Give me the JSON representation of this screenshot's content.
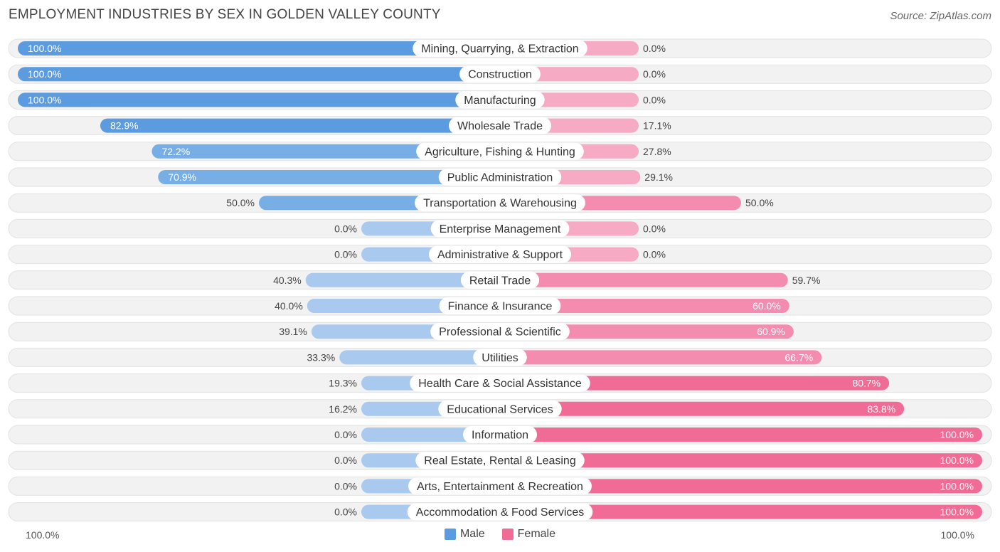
{
  "chart_data": {
    "type": "bar",
    "orientation": "horizontal-diverging",
    "title": "EMPLOYMENT INDUSTRIES BY SEX IN GOLDEN VALLEY COUNTY",
    "source": "Source: ZipAtlas.com",
    "axis_left_label": "100.0%",
    "axis_right_label": "100.0%",
    "legend": [
      {
        "name": "Male",
        "color": "#5b9bdf"
      },
      {
        "name": "Female",
        "color": "#f06b96"
      }
    ],
    "categories": [
      "Mining, Quarrying, & Extraction",
      "Construction",
      "Manufacturing",
      "Wholesale Trade",
      "Agriculture, Fishing & Hunting",
      "Public Administration",
      "Transportation & Warehousing",
      "Enterprise Management",
      "Administrative & Support",
      "Retail Trade",
      "Finance & Insurance",
      "Professional & Scientific",
      "Utilities",
      "Health Care & Social Assistance",
      "Educational Services",
      "Information",
      "Real Estate, Rental & Leasing",
      "Arts, Entertainment & Recreation",
      "Accommodation & Food Services"
    ],
    "series": [
      {
        "name": "Male",
        "values": [
          100.0,
          100.0,
          100.0,
          82.9,
          72.2,
          70.9,
          50.0,
          0.0,
          0.0,
          40.3,
          40.0,
          39.1,
          33.3,
          19.3,
          16.2,
          0.0,
          0.0,
          0.0,
          0.0
        ],
        "labels": [
          "100.0%",
          "100.0%",
          "100.0%",
          "82.9%",
          "72.2%",
          "70.9%",
          "50.0%",
          "0.0%",
          "0.0%",
          "40.3%",
          "40.0%",
          "39.1%",
          "33.3%",
          "19.3%",
          "16.2%",
          "0.0%",
          "0.0%",
          "0.0%",
          "0.0%"
        ]
      },
      {
        "name": "Female",
        "values": [
          0.0,
          0.0,
          0.0,
          17.1,
          27.8,
          29.1,
          50.0,
          0.0,
          0.0,
          59.7,
          60.0,
          60.9,
          66.7,
          80.7,
          83.8,
          100.0,
          100.0,
          100.0,
          100.0
        ],
        "labels": [
          "0.0%",
          "0.0%",
          "0.0%",
          "17.1%",
          "27.8%",
          "29.1%",
          "50.0%",
          "0.0%",
          "0.0%",
          "59.7%",
          "60.0%",
          "60.9%",
          "66.7%",
          "80.7%",
          "83.8%",
          "100.0%",
          "100.0%",
          "100.0%",
          "100.0%"
        ]
      }
    ],
    "xlim": [
      -100,
      100
    ]
  }
}
